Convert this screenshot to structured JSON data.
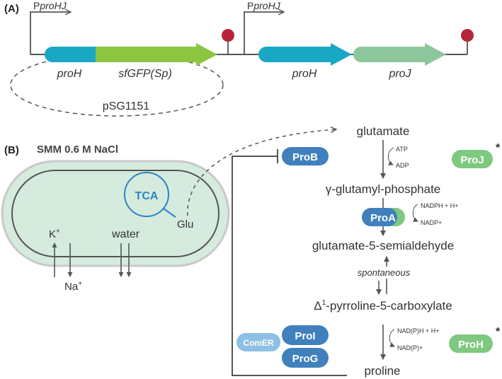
{
  "panel_a": {
    "label": "(A)",
    "promoter_1": {
      "prefix": "P",
      "name": "proHJ"
    },
    "promoter_2": {
      "prefix": "P",
      "name": "proHJ"
    },
    "plasmid_genes": [
      "proH",
      "sfGFP(Sp)"
    ],
    "chromosome_genes": [
      "proH",
      "proJ"
    ],
    "plasmid_name": "pSG1151"
  },
  "panel_b": {
    "label": "(B)",
    "condition": "SMM 0.6 M NaCl",
    "cell": {
      "tca": "TCA",
      "glu": "Glu",
      "k": "K",
      "k_sup": "+",
      "na": "Na",
      "na_sup": "+",
      "water": "water"
    },
    "pathway": {
      "glutamate": "glutamate",
      "atp": "ATP",
      "adp": "ADP",
      "gamma_glutamyl": "γ-glutamyl-phosphate",
      "nadph_h": "NADPH + H+",
      "nadp": "NADP+",
      "semialdehyde": "glutamate-5-semialdehyde",
      "spontaneous": "spontaneous",
      "p5c_delta": "Δ",
      "p5c_sup": "1",
      "p5c_rest": "-pyrroline-5-carboxylate",
      "nadph_h2": "NAD(P)H + H+",
      "nadp2": "NAD(P)+",
      "proline": "proline",
      "asterisk": "*"
    },
    "enzymes": {
      "prob": "ProB",
      "proj": "ProJ",
      "proa": "ProA",
      "proi": "ProI",
      "prog": "ProG",
      "comer": "ComER",
      "proh": "ProH"
    }
  },
  "colors": {
    "blue": "#3f80bd",
    "green_light": "#7ec87f",
    "teal": "#1aa7c4",
    "sfgfp_green": "#8cc640",
    "proj_green": "#8cc79b",
    "terminator": "#b5253a",
    "cell_fill": "#d5ebdd",
    "comer_blue": "#8ebfe4",
    "tca_blue": "#2a84c4"
  }
}
